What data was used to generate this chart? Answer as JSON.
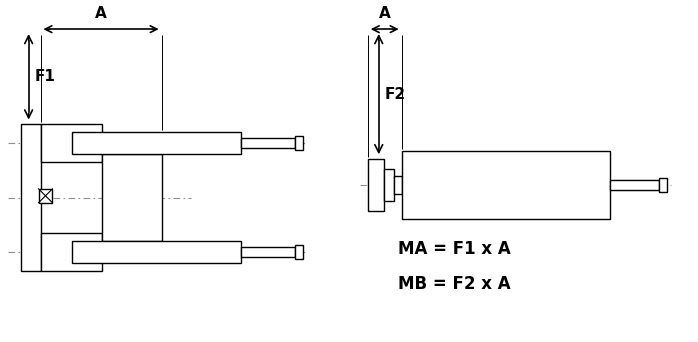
{
  "bg_color": "#ffffff",
  "line_color": "#000000",
  "dash_color": "#909090",
  "figsize": [
    6.98,
    3.42
  ],
  "dpi": 100,
  "formula_line1": "MA = F1 x A",
  "formula_line2": "MB = F2 x A",
  "label_A": "A",
  "label_F1": "F1",
  "label_F2": "F2"
}
